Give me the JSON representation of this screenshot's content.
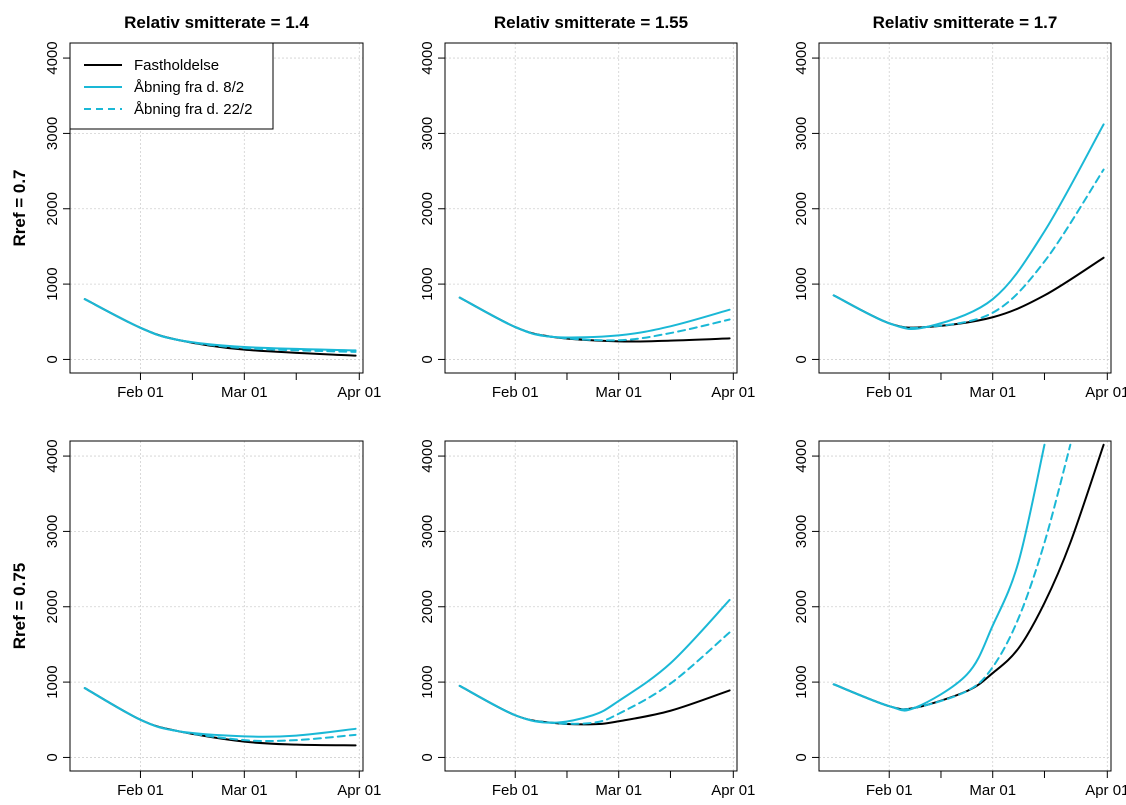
{
  "columns": [
    "Relativ smitterate = 1.4",
    "Relativ smitterate = 1.55",
    "Relativ smitterate = 1.7"
  ],
  "rows": [
    "Rref = 0.7",
    "Rref = 0.75"
  ],
  "legend": [
    "Fastholdelse",
    "Åbning fra d. 8/2",
    "Åbning fra d. 22/2"
  ],
  "colors": {
    "fastholdelse": "#000000",
    "opening": "#1ab8d6",
    "grid": "#d0d0d0"
  },
  "chart_data": [
    {
      "type": "line",
      "title": "Relativ smitterate = 1.4",
      "ylabel": "Rref = 0.7",
      "x_ticks": [
        "Feb 01",
        "Mar 01",
        "Apr 01"
      ],
      "y_ticks": [
        "0",
        "1000",
        "2000",
        "3000",
        "4000"
      ],
      "ylim": [
        0,
        4000
      ],
      "legend_position": "top-left",
      "x_dates": [
        "2021-01-17",
        "2021-02-01",
        "2021-02-11",
        "2021-03-01",
        "2021-03-31"
      ],
      "series": [
        {
          "name": "Fastholdelse",
          "values": [
            800,
            420,
            260,
            130,
            50
          ]
        },
        {
          "name": "Åbning fra d. 8/2",
          "values": [
            800,
            420,
            260,
            165,
            120
          ]
        },
        {
          "name": "Åbning fra d. 22/2",
          "values": [
            800,
            420,
            260,
            150,
            100
          ]
        }
      ]
    },
    {
      "type": "line",
      "title": "Relativ smitterate = 1.55",
      "ylabel": "",
      "x_ticks": [
        "Feb 01",
        "Mar 01",
        "Apr 01"
      ],
      "y_ticks": [
        "0",
        "1000",
        "2000",
        "3000",
        "4000"
      ],
      "ylim": [
        0,
        4000
      ],
      "x_dates": [
        "2021-01-17",
        "2021-02-01",
        "2021-02-11",
        "2021-03-01",
        "2021-03-15",
        "2021-03-31"
      ],
      "series": [
        {
          "name": "Fastholdelse",
          "values": [
            820,
            430,
            300,
            240,
            250,
            280
          ]
        },
        {
          "name": "Åbning fra d. 8/2",
          "values": [
            820,
            430,
            300,
            320,
            440,
            660
          ]
        },
        {
          "name": "Åbning fra d. 22/2",
          "values": [
            820,
            430,
            300,
            255,
            350,
            530
          ]
        }
      ]
    },
    {
      "type": "line",
      "title": "Relativ smitterate = 1.7",
      "ylabel": "",
      "x_ticks": [
        "Feb 01",
        "Mar 01",
        "Apr 01"
      ],
      "y_ticks": [
        "0",
        "1000",
        "2000",
        "3000",
        "4000"
      ],
      "ylim": [
        0,
        4000
      ],
      "x_dates": [
        "2021-01-17",
        "2021-02-01",
        "2021-02-11",
        "2021-03-01",
        "2021-03-15",
        "2021-03-31"
      ],
      "series": [
        {
          "name": "Fastholdelse",
          "values": [
            850,
            480,
            430,
            560,
            850,
            1350
          ]
        },
        {
          "name": "Åbning fra d. 8/2",
          "values": [
            850,
            480,
            430,
            800,
            1700,
            3120
          ]
        },
        {
          "name": "Åbning fra d. 22/2",
          "values": [
            850,
            480,
            430,
            620,
            1300,
            2520
          ]
        }
      ]
    },
    {
      "type": "line",
      "title": "",
      "ylabel": "Rref = 0.75",
      "x_ticks": [
        "Feb 01",
        "Mar 01",
        "Apr 01"
      ],
      "y_ticks": [
        "0",
        "1000",
        "2000",
        "3000",
        "4000"
      ],
      "ylim": [
        0,
        4000
      ],
      "x_dates": [
        "2021-01-17",
        "2021-02-01",
        "2021-02-11",
        "2021-03-01",
        "2021-03-15",
        "2021-03-31"
      ],
      "series": [
        {
          "name": "Fastholdelse",
          "values": [
            920,
            500,
            350,
            210,
            170,
            160
          ]
        },
        {
          "name": "Åbning fra d. 8/2",
          "values": [
            920,
            500,
            350,
            280,
            290,
            380
          ]
        },
        {
          "name": "Åbning fra d. 22/2",
          "values": [
            920,
            500,
            350,
            230,
            230,
            300
          ]
        }
      ]
    },
    {
      "type": "line",
      "title": "",
      "ylabel": "",
      "x_ticks": [
        "Feb 01",
        "Mar 01",
        "Apr 01"
      ],
      "y_ticks": [
        "0",
        "1000",
        "2000",
        "3000",
        "4000"
      ],
      "ylim": [
        0,
        4000
      ],
      "x_dates": [
        "2021-01-17",
        "2021-02-01",
        "2021-02-11",
        "2021-02-22",
        "2021-03-01",
        "2021-03-15",
        "2021-03-31"
      ],
      "series": [
        {
          "name": "Fastholdelse",
          "values": [
            950,
            560,
            460,
            440,
            480,
            620,
            890
          ]
        },
        {
          "name": "Åbning fra d. 8/2",
          "values": [
            950,
            560,
            460,
            560,
            750,
            1250,
            2090
          ]
        },
        {
          "name": "Åbning fra d. 22/2",
          "values": [
            950,
            560,
            460,
            460,
            580,
            980,
            1660
          ]
        }
      ]
    },
    {
      "type": "line",
      "title": "",
      "ylabel": "",
      "x_dates": [
        "2021-01-17",
        "2021-02-01",
        "2021-02-08",
        "2021-02-22",
        "2021-03-01",
        "2021-03-08",
        "2021-03-15",
        "2021-03-22",
        "2021-03-31"
      ],
      "x_ticks": [
        "Feb 01",
        "Mar 01",
        "Apr 01"
      ],
      "y_ticks": [
        "0",
        "1000",
        "2000",
        "3000",
        "4000"
      ],
      "ylim": [
        0,
        4000
      ],
      "series": [
        {
          "name": "Fastholdelse",
          "values": [
            970,
            680,
            660,
            880,
            1120,
            1450,
            2050,
            2850,
            4150
          ]
        },
        {
          "name": "Åbning fra d. 8/2",
          "values": [
            970,
            680,
            660,
            1100,
            1750,
            2600,
            4150,
            null,
            null
          ]
        },
        {
          "name": "Åbning fra d. 22/2",
          "values": [
            970,
            680,
            660,
            880,
            1200,
            1850,
            2850,
            4150,
            null
          ]
        }
      ]
    }
  ]
}
